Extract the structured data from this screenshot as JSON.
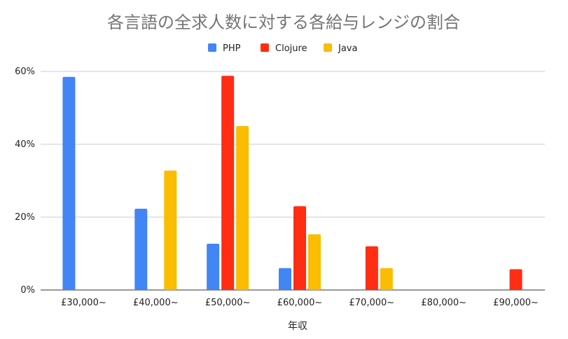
{
  "chart_data": {
    "type": "bar",
    "title": "各言語の全求人数に対する各給与レンジの割合",
    "xlabel": "年収",
    "ylabel": "",
    "categories": [
      "£30,000~",
      "£40,000~",
      "£50,000~",
      "£60,000~",
      "£70,000~",
      "£80,000~",
      "£90,000~"
    ],
    "series": [
      {
        "name": "PHP",
        "color": "#4285F4",
        "values": [
          58.5,
          22.3,
          12.7,
          6.0,
          0,
          0,
          0
        ]
      },
      {
        "name": "Clojure",
        "color": "#FF2D14",
        "values": [
          0,
          0,
          58.8,
          23.0,
          12.0,
          0,
          5.7
        ]
      },
      {
        "name": "Java",
        "color": "#FBBC04",
        "values": [
          0,
          32.8,
          45.0,
          15.3,
          6.0,
          0,
          0
        ]
      }
    ],
    "ylim": [
      0,
      60
    ],
    "yticks": [
      "0%",
      "20%",
      "40%",
      "60%"
    ],
    "ytick_values": [
      0,
      20,
      40,
      60
    ],
    "grid": true,
    "legend_position": "top-center"
  }
}
